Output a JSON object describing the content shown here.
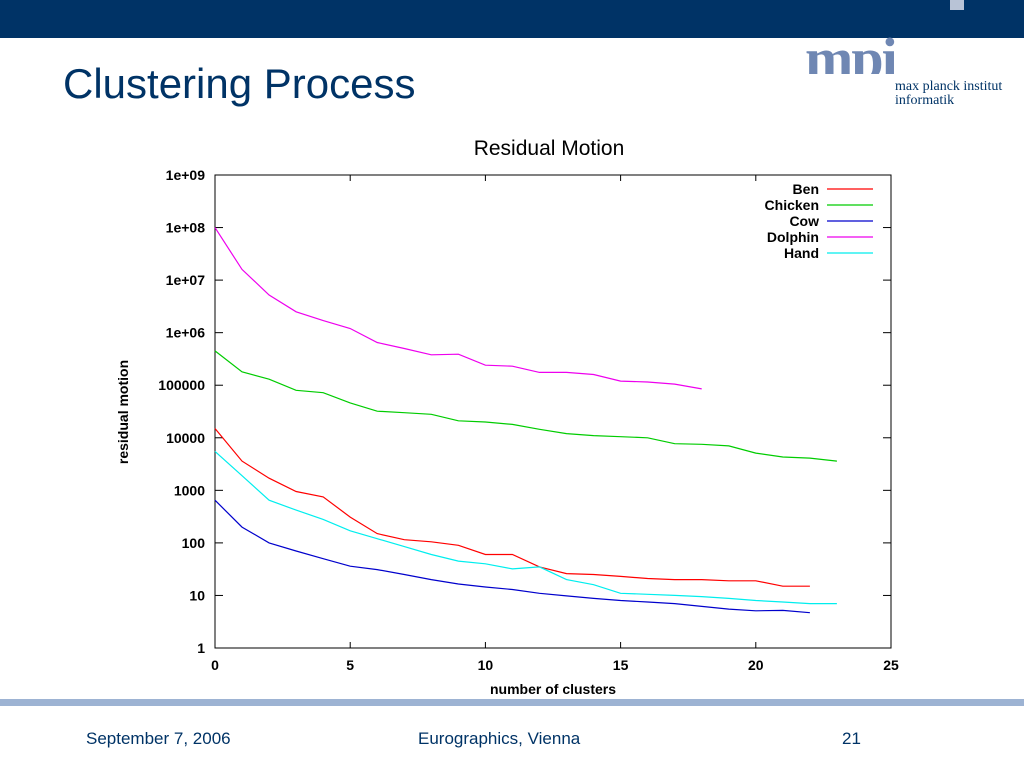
{
  "slide": {
    "title": "Clustering Process",
    "footer_date": "September 7, 2006",
    "footer_venue": "Eurographics, Vienna",
    "page_number": "21"
  },
  "logo": {
    "glyph": "mpi",
    "line1": "max planck institut",
    "line2": "informatik"
  },
  "colors": {
    "header_bar": "#003366",
    "title_text": "#003366",
    "footer_rule": "#9db3d3"
  },
  "chart_data": {
    "type": "line",
    "title": "Residual Motion",
    "xlabel": "number of clusters",
    "ylabel": "residual motion",
    "xlim": [
      0,
      25
    ],
    "ylim": [
      1,
      1000000000
    ],
    "yscale": "log",
    "grid": false,
    "legend_position": "top-right",
    "xticks": [
      "0",
      "5",
      "10",
      "15",
      "20",
      "25"
    ],
    "yticks": [
      "1",
      "10",
      "100",
      "1000",
      "10000",
      "100000",
      "1e+06",
      "1e+07",
      "1e+08",
      "1e+09"
    ],
    "series": [
      {
        "name": "Ben",
        "color": "#ff0000",
        "x": [
          0,
          1,
          2,
          3,
          4,
          5,
          6,
          7,
          8,
          9,
          10,
          11,
          12,
          13,
          14,
          15,
          16,
          17,
          18,
          19,
          20,
          21,
          22
        ],
        "values": [
          15000,
          3600,
          1700,
          950,
          750,
          310,
          150,
          115,
          105,
          90,
          60,
          60,
          35,
          26,
          25,
          23,
          21,
          20,
          20,
          19,
          19,
          15,
          15
        ]
      },
      {
        "name": "Chicken",
        "color": "#00cc00",
        "x": [
          0,
          1,
          2,
          3,
          4,
          5,
          6,
          7,
          8,
          9,
          10,
          11,
          12,
          13,
          14,
          15,
          16,
          17,
          18,
          19,
          20,
          21,
          22,
          23
        ],
        "values": [
          450000,
          180000,
          130000,
          80000,
          72000,
          46000,
          32000,
          30000,
          28000,
          21000,
          20000,
          18000,
          14500,
          12000,
          11000,
          10500,
          10000,
          7700,
          7500,
          7000,
          5100,
          4300,
          4100,
          3600
        ]
      },
      {
        "name": "Cow",
        "color": "#0000cc",
        "x": [
          0,
          1,
          2,
          3,
          4,
          5,
          6,
          7,
          8,
          9,
          10,
          11,
          12,
          13,
          14,
          15,
          16,
          17,
          18,
          19,
          20,
          21,
          22
        ],
        "values": [
          650,
          200,
          100,
          70,
          50,
          36,
          31,
          25,
          20,
          16.5,
          14.5,
          13,
          11,
          9.8,
          8.8,
          8,
          7.5,
          7,
          6.2,
          5.5,
          5.1,
          5.2,
          4.7
        ]
      },
      {
        "name": "Dolphin",
        "color": "#ee00ee",
        "x": [
          0,
          1,
          2,
          3,
          4,
          5,
          6,
          7,
          8,
          9,
          10,
          11,
          12,
          13,
          14,
          15,
          16,
          17,
          18
        ],
        "values": [
          100000000,
          16000000,
          5200000,
          2500000,
          1700000,
          1200000,
          650000,
          500000,
          380000,
          390000,
          240000,
          230000,
          175000,
          175000,
          160000,
          120000,
          115000,
          105000,
          85000
        ]
      },
      {
        "name": "Hand",
        "color": "#00eeee",
        "x": [
          0,
          1,
          2,
          3,
          4,
          5,
          6,
          7,
          8,
          9,
          10,
          11,
          12,
          13,
          14,
          15,
          16,
          17,
          18,
          19,
          20,
          21,
          22,
          23
        ],
        "values": [
          5500,
          1900,
          650,
          420,
          280,
          170,
          120,
          85,
          60,
          45,
          40,
          32,
          35,
          20,
          16,
          11,
          10.5,
          10,
          9.5,
          8.8,
          8,
          7.5,
          7,
          7
        ]
      }
    ]
  }
}
